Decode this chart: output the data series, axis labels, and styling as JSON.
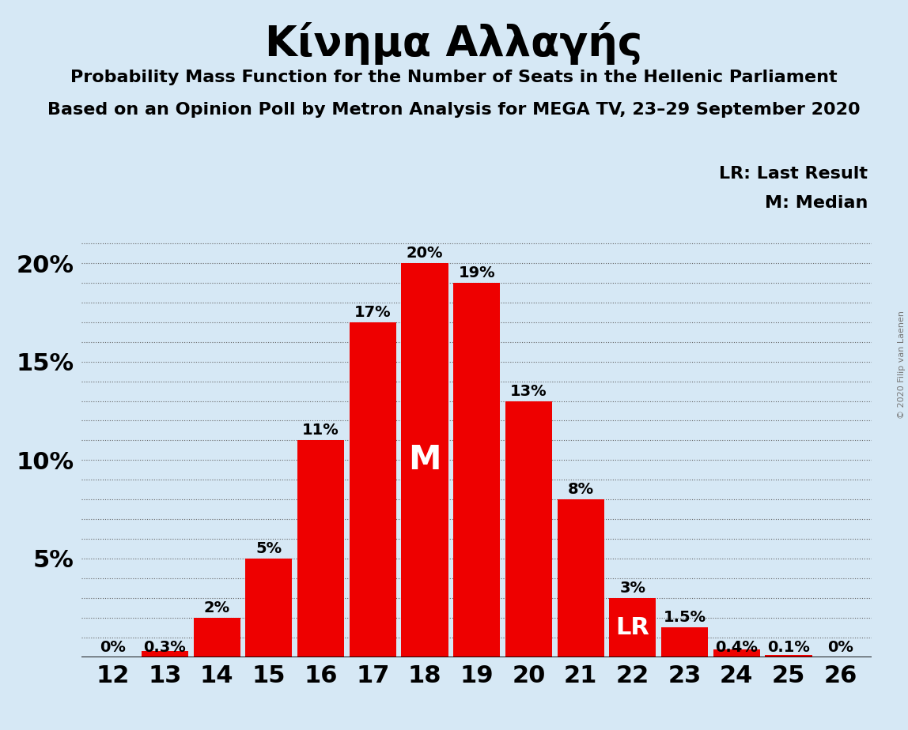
{
  "title": "Κίνημα Αλλαγής",
  "subtitle1": "Probability Mass Function for the Number of Seats in the Hellenic Parliament",
  "subtitle2": "Based on an Opinion Poll by Metron Analysis for MEGA TV, 23–29 September 2020",
  "copyright": "© 2020 Filip van Laenen",
  "categories": [
    12,
    13,
    14,
    15,
    16,
    17,
    18,
    19,
    20,
    21,
    22,
    23,
    24,
    25,
    26
  ],
  "values": [
    0.0,
    0.3,
    2.0,
    5.0,
    11.0,
    17.0,
    20.0,
    19.0,
    13.0,
    8.0,
    3.0,
    1.5,
    0.4,
    0.1,
    0.0
  ],
  "labels": [
    "0%",
    "0.3%",
    "2%",
    "5%",
    "11%",
    "17%",
    "20%",
    "19%",
    "13%",
    "8%",
    "3%",
    "1.5%",
    "0.4%",
    "0.1%",
    "0%"
  ],
  "bar_color": "#ee0000",
  "background_color": "#d6e8f5",
  "median_bar": 18,
  "lr_bar": 22,
  "median_label": "M",
  "lr_label": "LR",
  "legend_lr": "LR: Last Result",
  "legend_m": "M: Median",
  "ylim": [
    0,
    21.5
  ],
  "yticks": [
    0,
    5,
    10,
    15,
    20
  ],
  "ytick_labels": [
    "",
    "5%",
    "10%",
    "15%",
    "20%"
  ],
  "title_fontsize": 38,
  "subtitle_fontsize": 16,
  "bar_label_fontsize": 14,
  "axis_tick_fontsize": 22,
  "legend_fontsize": 16
}
